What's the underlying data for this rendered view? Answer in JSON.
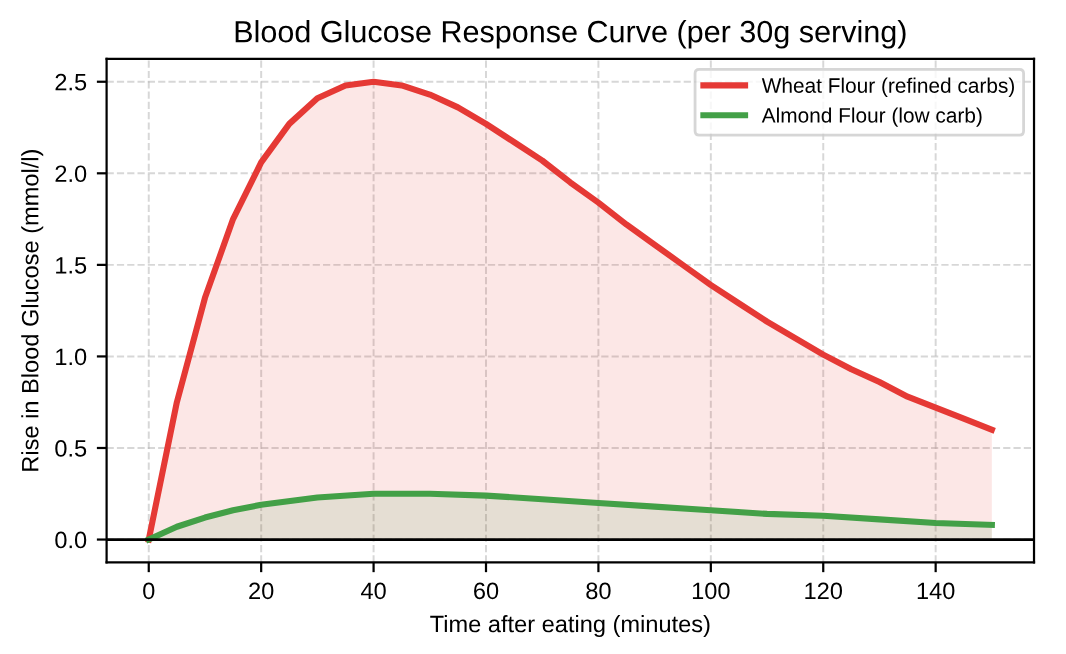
{
  "chart_data": {
    "type": "area",
    "title": "Blood Glucose Response Curve (per 30g serving)",
    "xlabel": "Time after eating (minutes)",
    "ylabel": "Rise in Blood Glucose (mmol/l)",
    "series": [
      {
        "name": "Wheat Flour (refined carbs)",
        "color": "#e53935",
        "x": [
          0,
          5,
          10,
          15,
          20,
          25,
          30,
          35,
          40,
          45,
          50,
          55,
          60,
          65,
          70,
          75,
          80,
          85,
          90,
          95,
          100,
          105,
          110,
          115,
          120,
          125,
          130,
          135,
          140,
          145,
          150
        ],
        "values": [
          0,
          0.75,
          1.32,
          1.75,
          2.06,
          2.27,
          2.41,
          2.48,
          2.5,
          2.48,
          2.43,
          2.36,
          2.27,
          2.17,
          2.07,
          1.95,
          1.84,
          1.72,
          1.61,
          1.5,
          1.39,
          1.29,
          1.19,
          1.1,
          1.01,
          0.93,
          0.86,
          0.78,
          0.72,
          0.66,
          0.6
        ]
      },
      {
        "name": "Almond Flour (low carb)",
        "color": "#43a047",
        "x": [
          0,
          5,
          10,
          15,
          20,
          30,
          40,
          45,
          50,
          60,
          70,
          80,
          90,
          100,
          110,
          120,
          130,
          140,
          150
        ],
        "values": [
          0,
          0.07,
          0.12,
          0.16,
          0.19,
          0.23,
          0.25,
          0.25,
          0.25,
          0.24,
          0.22,
          0.2,
          0.18,
          0.16,
          0.14,
          0.13,
          0.11,
          0.09,
          0.08
        ]
      }
    ],
    "xlim": [
      -7.5,
      157.5
    ],
    "xticks": [
      0,
      20,
      40,
      60,
      80,
      100,
      120,
      140
    ],
    "ylim": [
      -0.125,
      2.625
    ],
    "yticks": [
      {
        "value": 0,
        "label": "0.0"
      },
      0.5,
      {
        "value": 1,
        "label": "1.0"
      },
      1.5,
      {
        "value": 2,
        "label": "2.0"
      },
      2.5
    ],
    "ref_lines": [
      {
        "axis": "y",
        "value": 0,
        "color": "#000000"
      }
    ],
    "grid": true,
    "legend": "top right",
    "line_style": "solid"
  }
}
